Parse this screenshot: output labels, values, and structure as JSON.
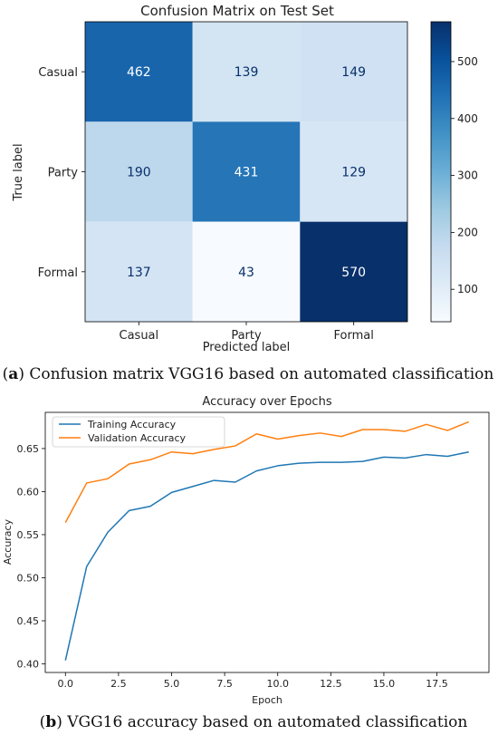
{
  "captions": {
    "a_letter": "a",
    "a_text": " Confusion matrix VGG16 based on automated classification",
    "b_letter": "b",
    "b_text": " VGG16 accuracy based on automated classification"
  },
  "chart_data": [
    {
      "type": "heatmap",
      "title": "Confusion Matrix on Test Set",
      "xlabel": "Predicted label",
      "ylabel": "True label",
      "x_categories": [
        "Casual",
        "Party",
        "Formal"
      ],
      "y_categories": [
        "Casual",
        "Party",
        "Formal"
      ],
      "values": [
        [
          462,
          139,
          149
        ],
        [
          190,
          431,
          129
        ],
        [
          137,
          43,
          570
        ]
      ],
      "colorbar": {
        "min": 43,
        "max": 570,
        "ticks": [
          100,
          200,
          300,
          400,
          500
        ]
      },
      "colormap": [
        "#f7fbff",
        "#deebf7",
        "#c6dbef",
        "#9ecae1",
        "#6baed6",
        "#4292c6",
        "#2171b5",
        "#08519c",
        "#08306b"
      ]
    },
    {
      "type": "line",
      "title": "Accuracy over Epochs",
      "xlabel": "Epoch",
      "ylabel": "Accuracy",
      "xlim": [
        -0.95,
        19.95
      ],
      "ylim": [
        0.39,
        0.692
      ],
      "xticks": [
        "0.0",
        "2.5",
        "5.0",
        "7.5",
        "10.0",
        "12.5",
        "15.0",
        "17.5"
      ],
      "yticks": [
        "0.40",
        "0.45",
        "0.50",
        "0.55",
        "0.60",
        "0.65"
      ],
      "legend_position": "top-left",
      "x": [
        0,
        1,
        2,
        3,
        4,
        5,
        6,
        7,
        8,
        9,
        10,
        11,
        12,
        13,
        14,
        15,
        16,
        17,
        18,
        19
      ],
      "series": [
        {
          "name": "Training Accuracy",
          "color": "#1f77b4",
          "values": [
            0.404,
            0.513,
            0.553,
            0.578,
            0.583,
            0.599,
            0.606,
            0.613,
            0.611,
            0.624,
            0.63,
            0.633,
            0.634,
            0.634,
            0.635,
            0.64,
            0.639,
            0.643,
            0.641,
            0.646
          ]
        },
        {
          "name": "Validation Accuracy",
          "color": "#ff7f0e",
          "values": [
            0.564,
            0.61,
            0.615,
            0.632,
            0.637,
            0.646,
            0.644,
            0.649,
            0.653,
            0.667,
            0.661,
            0.665,
            0.668,
            0.664,
            0.672,
            0.672,
            0.67,
            0.678,
            0.671,
            0.681
          ]
        }
      ]
    }
  ]
}
